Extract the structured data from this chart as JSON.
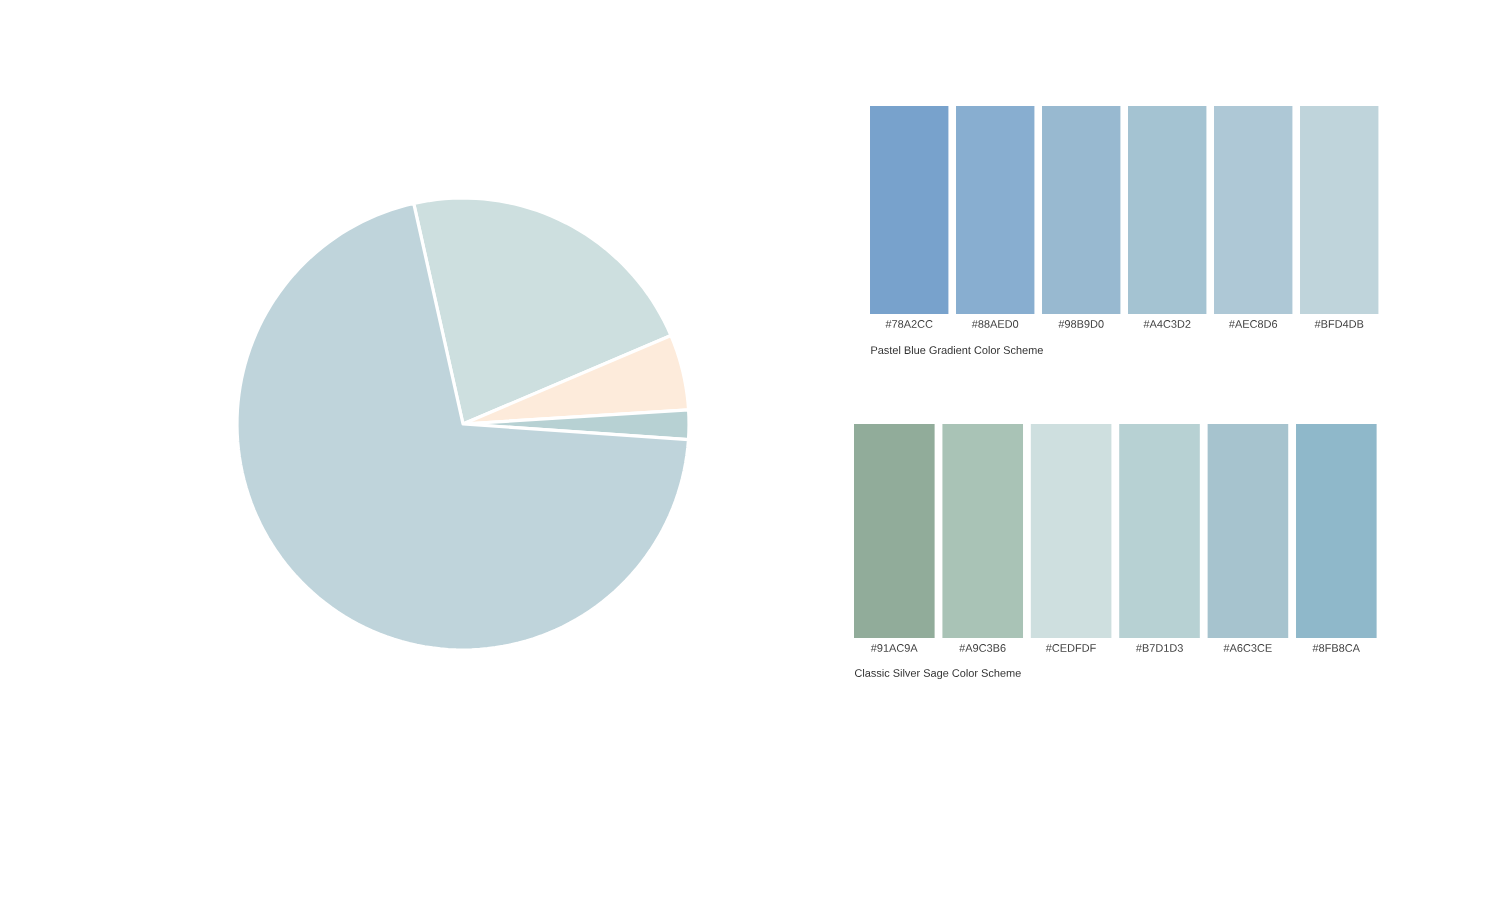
{
  "chart_data": [
    {
      "type": "pie",
      "categories": [
        null,
        null,
        null,
        null
      ],
      "values": [
        22.1,
        5.4,
        2.1,
        70.4
      ],
      "colors": [
        "#cddfdf",
        "#fdebdb",
        "#b7d1d3",
        "#bfd4db"
      ]
    },
    {
      "type": "other",
      "title": "Pastel Blue Gradient  Color Scheme",
      "categories": [
        "#78A2CC",
        "#88AED0",
        "#98B9D0",
        "#A4C3D2",
        "#AEC8D6",
        "#BFD4DB"
      ],
      "colors": [
        "#78a2cc",
        "#88aed0",
        "#98b9d0",
        "#a4c3d2",
        "#aec8d6",
        "#bfd4db"
      ]
    },
    {
      "type": "other",
      "title": "Classic Silver Sage  Color Scheme",
      "categories": [
        "#91AC9A",
        "#A9C3B6",
        "#CEDFDF",
        "#B7D1D3",
        "#A6C3CE",
        "#8FB8CA"
      ],
      "colors": [
        "#91ac9a",
        "#a9c3b6",
        "#cedfdf",
        "#b7d1d3",
        "#a6c3ce",
        "#8fb8ca"
      ]
    }
  ]
}
